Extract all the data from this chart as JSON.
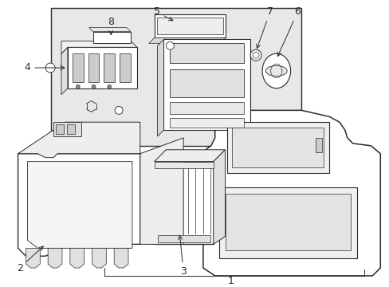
{
  "bg_color": "#ffffff",
  "lc": "#2a2a2a",
  "gray_fill": "#e8e8e8",
  "white_fill": "#ffffff",
  "label_fs": 8,
  "lw_main": 0.9,
  "lw_thin": 0.5
}
